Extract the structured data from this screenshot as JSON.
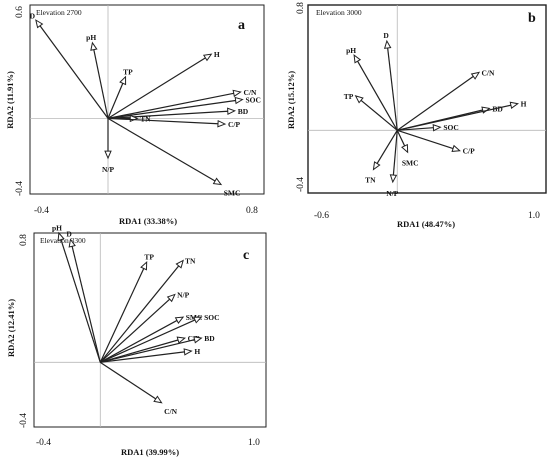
{
  "chart_data": [
    {
      "type": "biplot",
      "panel": "a",
      "title": "Elevation 2700",
      "xlabel": "RDA1 (33.38%)",
      "ylabel": "RDA2 (11.91%)",
      "xlim": [
        -0.4,
        0.8
      ],
      "ylim": [
        -0.4,
        0.6
      ],
      "x_tick_labels": [
        "-0.4",
        "0.8"
      ],
      "y_tick_labels": [
        "-0.4",
        "0.6"
      ],
      "origin": [
        0.0,
        0.0
      ],
      "vectors": [
        {
          "name": "D",
          "x": -0.37,
          "y": 0.52
        },
        {
          "name": "pH",
          "x": -0.08,
          "y": 0.4
        },
        {
          "name": "TP",
          "x": 0.09,
          "y": 0.22
        },
        {
          "name": "H",
          "x": 0.53,
          "y": 0.34
        },
        {
          "name": "C/N",
          "x": 0.68,
          "y": 0.14
        },
        {
          "name": "SOC",
          "x": 0.69,
          "y": 0.1
        },
        {
          "name": "BD",
          "x": 0.65,
          "y": 0.04
        },
        {
          "name": "TN",
          "x": 0.15,
          "y": 0.0
        },
        {
          "name": "C/P",
          "x": 0.6,
          "y": -0.03
        },
        {
          "name": "N/P",
          "x": 0.0,
          "y": -0.21
        },
        {
          "name": "SMC",
          "x": 0.58,
          "y": -0.35
        }
      ]
    },
    {
      "type": "biplot",
      "panel": "b",
      "title": "Elevation 3000",
      "xlabel": "RDA1 (48.47%)",
      "ylabel": "RDA2 (15.12%)",
      "xlim": [
        -0.6,
        1.0
      ],
      "ylim": [
        -0.4,
        0.8
      ],
      "x_tick_labels": [
        "-0.6",
        "1.0"
      ],
      "y_tick_labels": [
        "-0.4",
        "0.8"
      ],
      "origin": [
        0.0,
        0.0
      ],
      "vectors": [
        {
          "name": "D",
          "x": -0.07,
          "y": 0.57
        },
        {
          "name": "pH",
          "x": -0.29,
          "y": 0.48
        },
        {
          "name": "TP",
          "x": -0.28,
          "y": 0.22
        },
        {
          "name": "C/N",
          "x": 0.55,
          "y": 0.37
        },
        {
          "name": "BD",
          "x": 0.62,
          "y": 0.14
        },
        {
          "name": "H",
          "x": 0.81,
          "y": 0.17
        },
        {
          "name": "SOC",
          "x": 0.29,
          "y": 0.02
        },
        {
          "name": "C/P",
          "x": 0.42,
          "y": -0.13
        },
        {
          "name": "SMC",
          "x": 0.07,
          "y": -0.14
        },
        {
          "name": "TN",
          "x": -0.16,
          "y": -0.25
        },
        {
          "name": "N/P",
          "x": -0.03,
          "y": -0.33
        }
      ]
    },
    {
      "type": "biplot",
      "panel": "c",
      "title": "Elevation 3300",
      "xlabel": "RDA1 (39.99%)",
      "ylabel": "RDA2 (12.41%)",
      "xlim": [
        -0.4,
        1.0
      ],
      "ylim": [
        -0.4,
        0.8
      ],
      "x_tick_labels": [
        "-0.4",
        "1.0"
      ],
      "y_tick_labels": [
        "-0.4",
        "0.8"
      ],
      "origin": [
        0.0,
        0.0
      ],
      "vectors": [
        {
          "name": "pH",
          "x": -0.25,
          "y": 0.8
        },
        {
          "name": "D",
          "x": -0.18,
          "y": 0.76
        },
        {
          "name": "TP",
          "x": 0.28,
          "y": 0.62
        },
        {
          "name": "TN",
          "x": 0.5,
          "y": 0.63
        },
        {
          "name": "N/P",
          "x": 0.45,
          "y": 0.42
        },
        {
          "name": "SMC",
          "x": 0.5,
          "y": 0.28
        },
        {
          "name": "SOC",
          "x": 0.61,
          "y": 0.28
        },
        {
          "name": "C/P",
          "x": 0.51,
          "y": 0.15
        },
        {
          "name": "BD",
          "x": 0.61,
          "y": 0.15
        },
        {
          "name": "H",
          "x": 0.55,
          "y": 0.07
        },
        {
          "name": "C/N",
          "x": 0.37,
          "y": -0.25
        }
      ]
    }
  ]
}
